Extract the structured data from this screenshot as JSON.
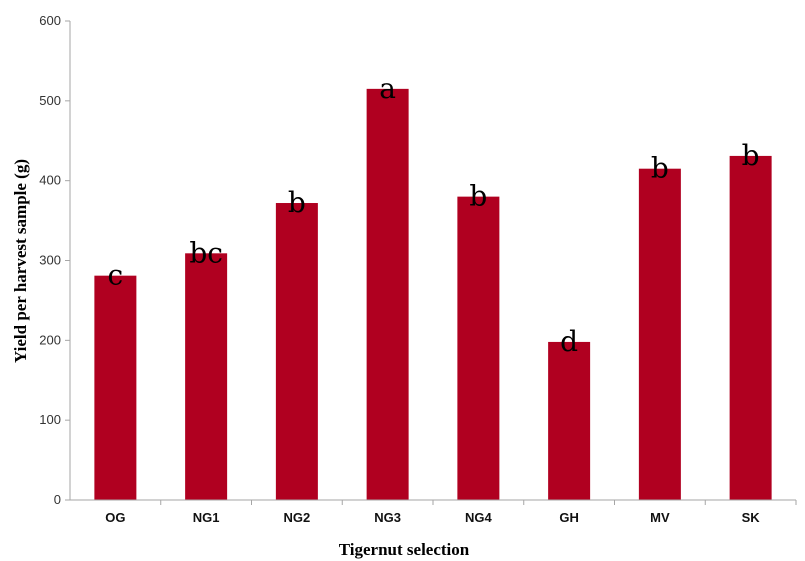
{
  "chart_data": {
    "type": "bar",
    "title": "",
    "xlabel": "Tigernut selection",
    "ylabel": "Yield per harvest sample (g)",
    "categories": [
      "OG",
      "NG1",
      "NG2",
      "NG3",
      "NG4",
      "GH",
      "MV",
      "SK"
    ],
    "values": [
      281,
      309,
      372,
      515,
      380,
      198,
      415,
      431
    ],
    "annotations": [
      "c",
      "bc",
      "b",
      "a",
      "b",
      "d",
      "b",
      "b"
    ],
    "ylim": [
      0,
      600
    ],
    "yticks": [
      "0",
      "100",
      "200",
      "300",
      "400",
      "500",
      "600"
    ],
    "grid": false,
    "legend": "none",
    "bar_color": "#b00020",
    "axis_color": "#a6a6a6"
  }
}
